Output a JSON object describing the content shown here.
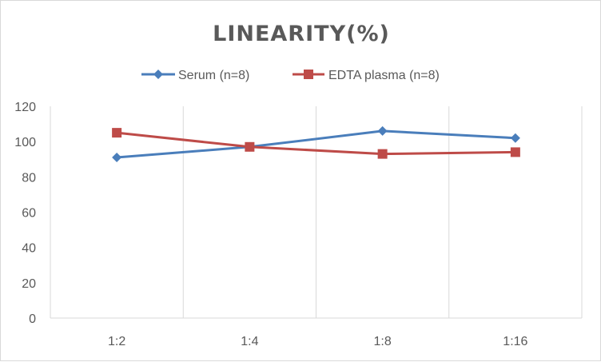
{
  "chart_data": {
    "type": "line",
    "title": "LINEARITY(%)",
    "xlabel": "",
    "ylabel": "",
    "categories": [
      "1:2",
      "1:4",
      "1:8",
      "1:16"
    ],
    "ylim": [
      0,
      120
    ],
    "yticks": [
      0,
      20,
      40,
      60,
      80,
      100,
      120
    ],
    "grid": "vertical",
    "legend_position": "top",
    "series": [
      {
        "name": "Serum (n=8)",
        "values": [
          91,
          97,
          106,
          102
        ],
        "color": "#4a7ebb",
        "marker": "diamond"
      },
      {
        "name": "EDTA plasma (n=8)",
        "values": [
          105,
          97,
          93,
          94
        ],
        "color": "#be4b48",
        "marker": "square"
      }
    ]
  }
}
